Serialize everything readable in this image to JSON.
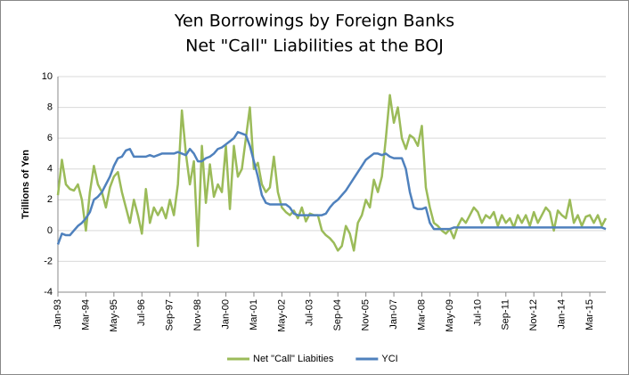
{
  "chart_data": {
    "type": "line",
    "title": [
      "Yen Borrowings by Foreign Banks",
      "Net \"Call\" Liabilities at the BOJ"
    ],
    "y_label": "Trillions of Yen",
    "categories": [
      "Jan-93",
      null,
      null,
      null,
      null,
      null,
      null,
      "Mar-94",
      null,
      null,
      null,
      null,
      null,
      null,
      "May-95",
      null,
      null,
      null,
      null,
      null,
      null,
      "Jul-96",
      null,
      null,
      null,
      null,
      null,
      null,
      "Sep-97",
      null,
      null,
      null,
      null,
      null,
      null,
      "Nov-98",
      null,
      null,
      null,
      null,
      null,
      null,
      "Jan-00",
      null,
      null,
      null,
      null,
      null,
      null,
      "Mar-01",
      null,
      null,
      null,
      null,
      null,
      null,
      "May-02",
      null,
      null,
      null,
      null,
      null,
      null,
      "Jul-03",
      null,
      null,
      null,
      null,
      null,
      null,
      "Sep-04",
      null,
      null,
      null,
      null,
      null,
      null,
      "Nov-05",
      null,
      null,
      null,
      null,
      null,
      null,
      "Jan-07",
      null,
      null,
      null,
      null,
      null,
      null,
      "Mar-08",
      null,
      null,
      null,
      null,
      null,
      null,
      "May-09",
      null,
      null,
      null,
      null,
      null,
      null,
      "Jul-10",
      null,
      null,
      null,
      null,
      null,
      null,
      "Sep-11",
      null,
      null,
      null,
      null,
      null,
      null,
      "Nov-12",
      null,
      null,
      null,
      null,
      null,
      null,
      "Jan-14",
      null,
      null,
      null,
      null,
      null,
      null,
      "Mar-15",
      null,
      null,
      null,
      null
    ],
    "series": [
      {
        "name": "Net \"Call\" Liabities",
        "color": "#9bbb59",
        "values": [
          2.3,
          4.6,
          3.0,
          2.7,
          2.6,
          3.0,
          2.0,
          0.0,
          2.5,
          4.2,
          3.0,
          2.5,
          1.5,
          2.8,
          3.5,
          3.8,
          2.5,
          1.5,
          0.5,
          2.0,
          1.0,
          -0.2,
          2.7,
          0.5,
          1.5,
          1.0,
          1.5,
          0.8,
          2.0,
          1.0,
          3.0,
          7.8,
          5.0,
          3.0,
          4.5,
          -1.0,
          5.5,
          1.8,
          4.3,
          2.2,
          3.0,
          2.5,
          5.5,
          1.4,
          5.5,
          3.5,
          4.0,
          6.0,
          8.0,
          4.0,
          4.4,
          3.0,
          2.5,
          2.8,
          4.8,
          2.5,
          1.5,
          1.2,
          1.0,
          1.3,
          0.8,
          1.5,
          0.6,
          1.1,
          1.0,
          1.0,
          0.0,
          -0.3,
          -0.5,
          -0.8,
          -1.3,
          -1.0,
          0.3,
          -0.2,
          -1.3,
          0.5,
          1.0,
          2.0,
          1.5,
          3.3,
          2.5,
          3.5,
          6.0,
          8.8,
          7.0,
          8.0,
          6.0,
          5.3,
          6.2,
          6.0,
          5.5,
          6.8,
          2.8,
          1.5,
          0.5,
          0.3,
          0.0,
          -0.2,
          0.1,
          -0.5,
          0.3,
          0.8,
          0.5,
          1.0,
          1.5,
          1.2,
          0.5,
          1.0,
          0.8,
          1.2,
          0.3,
          1.0,
          0.5,
          0.8,
          0.2,
          1.0,
          0.5,
          1.0,
          0.3,
          1.2,
          0.5,
          1.0,
          1.5,
          1.2,
          0.0,
          1.3,
          1.0,
          0.8,
          2.0,
          0.5,
          1.0,
          0.3,
          0.9,
          1.0,
          0.5,
          1.0,
          0.3,
          0.8
        ]
      },
      {
        "name": "YCI",
        "color": "#4f81bd",
        "values": [
          -0.9,
          -0.2,
          -0.3,
          -0.3,
          0.0,
          0.3,
          0.5,
          0.8,
          1.2,
          2.0,
          2.2,
          2.5,
          3.0,
          3.5,
          4.2,
          4.7,
          4.8,
          5.2,
          5.3,
          4.8,
          4.8,
          4.8,
          4.8,
          4.9,
          4.8,
          4.9,
          5.0,
          5.0,
          5.0,
          5.0,
          5.1,
          5.0,
          4.9,
          5.3,
          5.0,
          4.5,
          4.5,
          4.7,
          4.8,
          5.0,
          5.3,
          5.4,
          5.6,
          5.8,
          6.0,
          6.4,
          6.3,
          6.2,
          5.5,
          4.5,
          3.5,
          2.3,
          1.8,
          1.7,
          1.7,
          1.7,
          1.7,
          1.7,
          1.5,
          1.1,
          1.0,
          1.0,
          1.0,
          1.0,
          1.0,
          1.0,
          1.0,
          1.1,
          1.5,
          1.8,
          2.0,
          2.3,
          2.6,
          3.0,
          3.4,
          3.8,
          4.2,
          4.6,
          4.8,
          5.0,
          5.0,
          4.9,
          5.0,
          4.8,
          4.7,
          4.7,
          4.7,
          4.0,
          2.5,
          1.5,
          1.4,
          1.4,
          1.5,
          0.5,
          0.1,
          0.1,
          0.1,
          0.1,
          0.1,
          0.2,
          0.2,
          0.2,
          0.2,
          0.2,
          0.2,
          0.2,
          0.2,
          0.2,
          0.2,
          0.2,
          0.2,
          0.2,
          0.2,
          0.2,
          0.2,
          0.2,
          0.2,
          0.2,
          0.2,
          0.2,
          0.2,
          0.2,
          0.2,
          0.2,
          0.2,
          0.2,
          0.2,
          0.2,
          0.2,
          0.2,
          0.2,
          0.2,
          0.2,
          0.2,
          0.2,
          0.2,
          0.2,
          0.1
        ]
      }
    ],
    "ylim": [
      -4,
      10
    ],
    "yticks": [
      -4,
      -2,
      0,
      2,
      4,
      6,
      8,
      10
    ],
    "grid": true,
    "legend": "bottom"
  }
}
